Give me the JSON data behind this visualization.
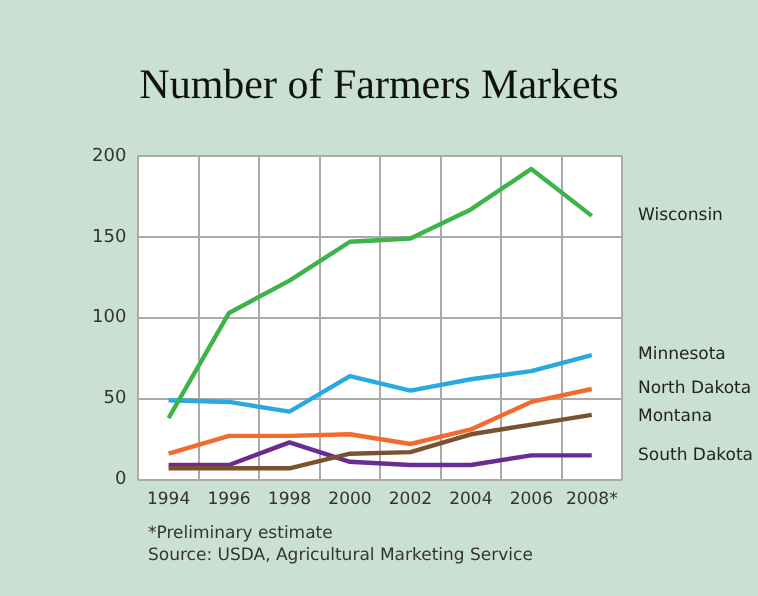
{
  "chart_data": {
    "type": "line",
    "title": "Number of Farmers Markets",
    "categories": [
      "1994",
      "1996",
      "1998",
      "2000",
      "2002",
      "2004",
      "2006",
      "2008*"
    ],
    "series": [
      {
        "name": "Wisconsin",
        "color": "#3cb44a",
        "values": [
          38,
          103,
          123,
          147,
          149,
          167,
          192,
          163
        ]
      },
      {
        "name": "Minnesota",
        "color": "#29a9e1",
        "values": [
          49,
          48,
          42,
          64,
          55,
          62,
          67,
          77
        ]
      },
      {
        "name": "North Dakota",
        "color": "#f26a2e",
        "values": [
          16,
          27,
          27,
          28,
          22,
          31,
          48,
          56
        ]
      },
      {
        "name": "Montana",
        "color": "#7b5230",
        "values": [
          7,
          7,
          7,
          16,
          17,
          28,
          34,
          40
        ]
      },
      {
        "name": "South Dakota",
        "color": "#6b2c91",
        "values": [
          9,
          9,
          23,
          11,
          9,
          9,
          15,
          15
        ]
      }
    ],
    "ylim": [
      0,
      200
    ],
    "yticks": [
      0,
      50,
      100,
      150,
      200
    ],
    "grid": true,
    "legend": false,
    "marker": "none",
    "line_style": "solid",
    "annotations": [
      "*Preliminary estimate",
      "Source: USDA, Agricultural Marketing Service"
    ]
  }
}
